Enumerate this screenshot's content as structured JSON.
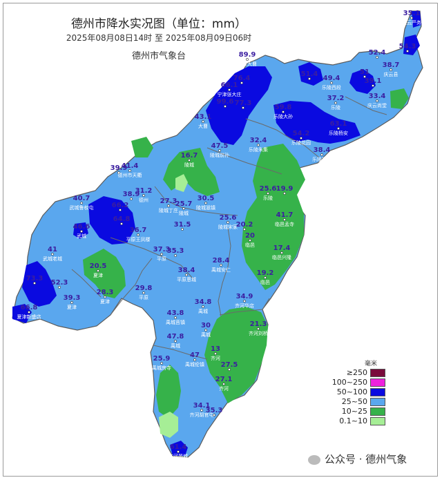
{
  "header": {
    "title": "德州市降水实况图（单位：mm）",
    "time_range": "2025年08月08日14时  至  2025年08月09日06时",
    "org": "德州市气象台"
  },
  "legend": {
    "unit": "毫米",
    "items": [
      {
        "label": "≥250",
        "color": "#7a0b3b"
      },
      {
        "label": "100~250",
        "color": "#ee22dd"
      },
      {
        "label": "50~100",
        "color": "#0a0ae0"
      },
      {
        "label": "25~50",
        "color": "#5aa7ee"
      },
      {
        "label": "10~25",
        "color": "#36b24a"
      },
      {
        "label": "0.1~10",
        "color": "#a6ee96"
      }
    ]
  },
  "watermark": "公众号 · 德州气象",
  "values": [
    {
      "v": "35.1",
      "station": "庆云严务"
    },
    {
      "v": "54.3",
      "station": ""
    },
    {
      "v": "52.4",
      "station": ""
    },
    {
      "v": "38.7",
      "station": "庆云县"
    },
    {
      "v": "89.9",
      "station": "宁津大曹"
    },
    {
      "v": "76.4",
      "station": ""
    },
    {
      "v": "51.4",
      "station": ""
    },
    {
      "v": "49.4",
      "station": "乐陵西段"
    },
    {
      "v": "51",
      "station": ""
    },
    {
      "v": "39.1",
      "station": ""
    },
    {
      "v": "66.1",
      "station": "宁津张大庄"
    },
    {
      "v": "99.6",
      "station": ""
    },
    {
      "v": "77.3",
      "station": ""
    },
    {
      "v": "37.2",
      "station": "乐陵"
    },
    {
      "v": "33.4",
      "station": "庆云尚堂"
    },
    {
      "v": "59.8",
      "station": "乐陵大孙"
    },
    {
      "v": "43.1",
      "station": "大曹"
    },
    {
      "v": "54.2",
      "station": "乐陵花园"
    },
    {
      "v": "63.1",
      "station": "乐陵杨安"
    },
    {
      "v": "32.4",
      "station": "乐陵朱集"
    },
    {
      "v": "47.5",
      "station": "陵城前孙"
    },
    {
      "v": "38.4",
      "station": "乐陵郑店"
    },
    {
      "v": "16.7",
      "station": "陵城"
    },
    {
      "v": "39.9",
      "station": ""
    },
    {
      "v": "41.4",
      "station": "德州市天衢"
    },
    {
      "v": "25.6",
      "station": "乐陵"
    },
    {
      "v": "19.9",
      "station": ""
    },
    {
      "v": "38.9",
      "station": ""
    },
    {
      "v": "31.2",
      "station": "德州"
    },
    {
      "v": "27.3",
      "station": "陵城丁庄"
    },
    {
      "v": "25.7",
      "station": "陵城"
    },
    {
      "v": "30.5",
      "station": "陵城滋镇"
    },
    {
      "v": "40.7",
      "station": "武城鲁权屯"
    },
    {
      "v": "66.2",
      "station": ""
    },
    {
      "v": "64.8",
      "station": ""
    },
    {
      "v": "41.7",
      "station": "临邑孟寺"
    },
    {
      "v": "46.6",
      "station": "武城"
    },
    {
      "v": "36.7",
      "station": "平原王凤楼"
    },
    {
      "v": "31.5",
      "station": ""
    },
    {
      "v": "25.6",
      "station": "陵城宋家"
    },
    {
      "v": "20.2",
      "station": ""
    },
    {
      "v": "20",
      "station": "临邑"
    },
    {
      "v": "41",
      "station": "武城老城"
    },
    {
      "v": "37.3",
      "station": "平原"
    },
    {
      "v": "35.3",
      "station": ""
    },
    {
      "v": "17.4",
      "station": "临邑兴隆"
    },
    {
      "v": "28.4",
      "station": "禹城安仁"
    },
    {
      "v": "20.5",
      "station": "夏津"
    },
    {
      "v": "38.4",
      "station": "平原恩城"
    },
    {
      "v": "19.2",
      "station": "临邑"
    },
    {
      "v": "73.3",
      "station": ""
    },
    {
      "v": "52.3",
      "station": ""
    },
    {
      "v": "28.3",
      "station": "夏津"
    },
    {
      "v": "29.8",
      "station": "平原"
    },
    {
      "v": "39.3",
      "station": "夏津"
    },
    {
      "v": "34.9",
      "station": "齐河华店"
    },
    {
      "v": "66.8",
      "station": "夏津新盛店"
    },
    {
      "v": "34.8",
      "station": "禹城"
    },
    {
      "v": "43.8",
      "station": "禹城莒镇"
    },
    {
      "v": "21.3",
      "station": "齐河刘桥"
    },
    {
      "v": "30",
      "station": "禹城"
    },
    {
      "v": "47.8",
      "station": "禹城"
    },
    {
      "v": "13",
      "station": "齐河"
    },
    {
      "v": "25.9",
      "station": "禹城房寺"
    },
    {
      "v": "47",
      "station": "禹城伦镇"
    },
    {
      "v": "27.5",
      "station": ""
    },
    {
      "v": "27.1",
      "station": "齐河"
    },
    {
      "v": "34.1",
      "station": "齐河胡官屯"
    },
    {
      "v": "35.3",
      "station": ""
    },
    {
      "v": "61.4",
      "station": "齐河晏城"
    }
  ]
}
